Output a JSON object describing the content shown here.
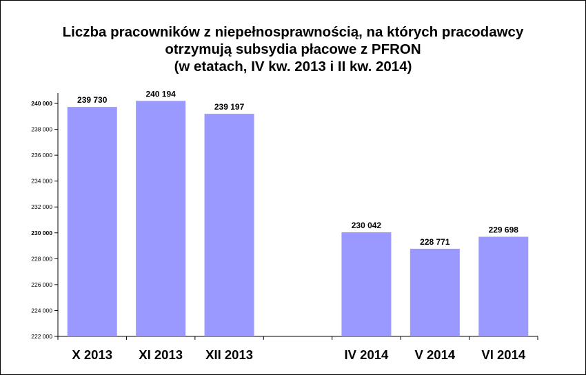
{
  "chart_data": {
    "type": "bar",
    "title_lines": [
      "Liczba pracowników z niepełnosprawnością, na których pracodawcy",
      "otrzymują subsydia płacowe z PFRON",
      "(w etatach, IV kw. 2013 i II kw. 2014)"
    ],
    "categories": [
      "X 2013",
      "XI 2013",
      "XII 2013",
      "",
      "IV 2014",
      "V 2014",
      "VI 2014"
    ],
    "values": [
      239730,
      240194,
      239197,
      null,
      230042,
      228771,
      229698
    ],
    "value_labels": [
      "239 730",
      "240 194",
      "239 197",
      "",
      "230 042",
      "228 771",
      "229 698"
    ],
    "ylim": [
      222000,
      240800
    ],
    "yticks": [
      222000,
      224000,
      226000,
      228000,
      230000,
      232000,
      234000,
      236000,
      238000,
      240000
    ],
    "ytick_labels": [
      "222 000",
      "224 000",
      "226 000",
      "228 000",
      "230 000",
      "232 000",
      "234 000",
      "236 000",
      "238 000",
      "240 000"
    ],
    "bold_ticks": [
      "230 000",
      "240 000"
    ],
    "bar_color": "#9999ff",
    "xlabel": "",
    "ylabel": "",
    "grid": false,
    "legend": "none"
  }
}
